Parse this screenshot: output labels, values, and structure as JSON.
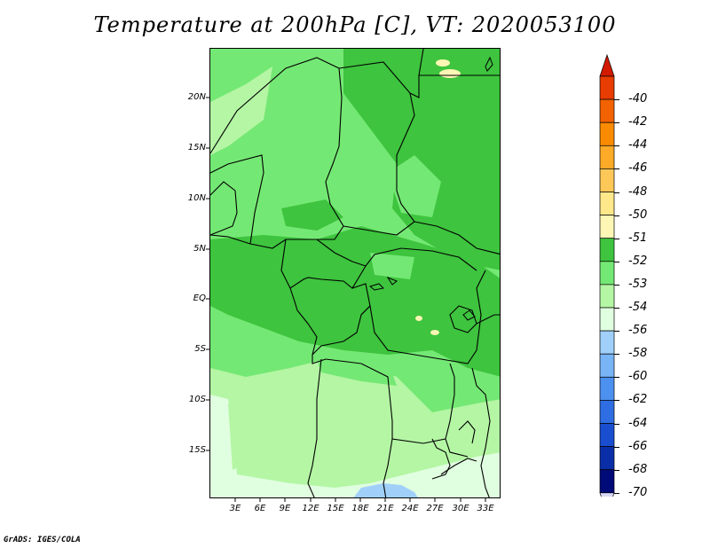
{
  "title": "Temperature at 200hPa [C], VT: 2020053100",
  "credit": "GrADS: IGES/COLA",
  "map": {
    "lat_ticks": [
      "20N",
      "15N",
      "10N",
      "5N",
      "EQ",
      "5S",
      "10S",
      "15S"
    ],
    "lon_ticks": [
      "3E",
      "6E",
      "9E",
      "12E",
      "15E",
      "18E",
      "21E",
      "24E",
      "27E",
      "30E",
      "33E"
    ],
    "colors": {
      "c52": "#3ec43e",
      "c53": "#74e874",
      "c54": "#b4f6a4",
      "c55": "#e0fee0",
      "c56": "#a0d0fa",
      "c51": "#fef6a4",
      "border": "#000000"
    }
  },
  "colorbar": {
    "levels": [
      "-40",
      "-42",
      "-44",
      "-46",
      "-48",
      "-50",
      "-51",
      "-52",
      "-53",
      "-54",
      "-56",
      "-58",
      "-60",
      "-62",
      "-64",
      "-66",
      "-68",
      "-70"
    ],
    "top_color": "#d11a00",
    "bottom_color": "#d8d8f8",
    "colors": [
      "#e83c00",
      "#f26200",
      "#fa8a00",
      "#fcaa28",
      "#fec858",
      "#fee88a",
      "#fef6b4",
      "#3ec43e",
      "#74e874",
      "#b4f6a4",
      "#e0fee0",
      "#a0d0fa",
      "#78b4f6",
      "#4c90f0",
      "#2e6ee2",
      "#1a4ed0",
      "#0a2ea8",
      "#000a78"
    ]
  }
}
